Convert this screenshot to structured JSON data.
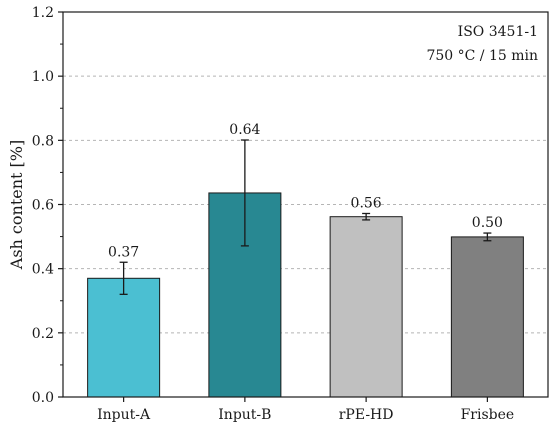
{
  "chart_data": {
    "type": "bar",
    "categories": [
      "Input-A",
      "Input-B",
      "rPE-HD",
      "Frisbee"
    ],
    "values": [
      0.37,
      0.636,
      0.562,
      0.499
    ],
    "value_labels": [
      "0.37",
      "0.64",
      "0.56",
      "0.50"
    ],
    "errors": [
      0.05,
      0.165,
      0.01,
      0.012
    ],
    "colors": [
      "#4bbfd2",
      "#288892",
      "#c0c0c0",
      "#808080"
    ],
    "ylabel": "Ash content [%]",
    "xlabel": "",
    "ylim": [
      0,
      1.2
    ],
    "yticks": [
      0.0,
      0.2,
      0.4,
      0.6,
      0.8,
      1.0,
      1.2
    ],
    "ytick_labels": [
      "0.0",
      "0.2",
      "0.4",
      "0.6",
      "0.8",
      "1.0",
      "1.2"
    ],
    "grid": "horizontal-dashed",
    "annotations": [
      "ISO 3451-1",
      "750 °C / 15 min"
    ],
    "annotation_placement": "top-right"
  }
}
